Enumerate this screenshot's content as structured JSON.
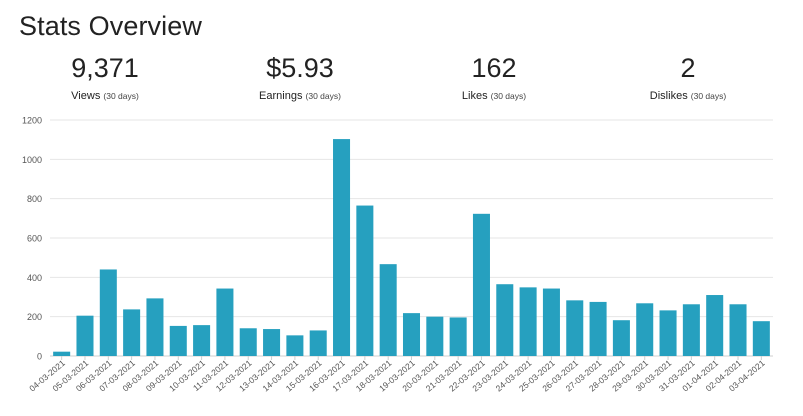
{
  "page": {
    "title": "Stats Overview"
  },
  "stats": [
    {
      "value": "9,371",
      "label": "Views",
      "period": "(30 days)"
    },
    {
      "value": "$5.93",
      "label": "Earnings",
      "period": "(30 days)"
    },
    {
      "value": "162",
      "label": "Likes",
      "period": "(30 days)"
    },
    {
      "value": "2",
      "label": "Dislikes",
      "period": "(30 days)"
    }
  ],
  "chart_data": {
    "type": "bar",
    "title": "",
    "xlabel": "",
    "ylabel": "",
    "ylim": [
      0,
      1200
    ],
    "yticks": [
      0,
      200,
      400,
      600,
      800,
      1000,
      1200
    ],
    "grid": true,
    "bar_color": "#26a0bf",
    "categories": [
      "04-03-2021",
      "05-03-2021",
      "06-03-2021",
      "07-03-2021",
      "08-03-2021",
      "09-03-2021",
      "10-03-2021",
      "11-03-2021",
      "12-03-2021",
      "13-03-2021",
      "14-03-2021",
      "15-03-2021",
      "16-03-2021",
      "17-03-2021",
      "18-03-2021",
      "19-03-2021",
      "20-03-2021",
      "21-03-2021",
      "22-03-2021",
      "23-03-2021",
      "24-03-2021",
      "25-03-2021",
      "26-03-2021",
      "27-03-2021",
      "28-03-2021",
      "29-03-2021",
      "30-03-2021",
      "31-03-2021",
      "01-04-2021",
      "02-04-2021",
      "03-04-2021"
    ],
    "values": [
      22,
      205,
      440,
      237,
      293,
      153,
      157,
      343,
      141,
      137,
      105,
      130,
      1103,
      765,
      467,
      218,
      200,
      196,
      723,
      365,
      349,
      343,
      283,
      275,
      182,
      268,
      232,
      263,
      310,
      263,
      177
    ]
  }
}
